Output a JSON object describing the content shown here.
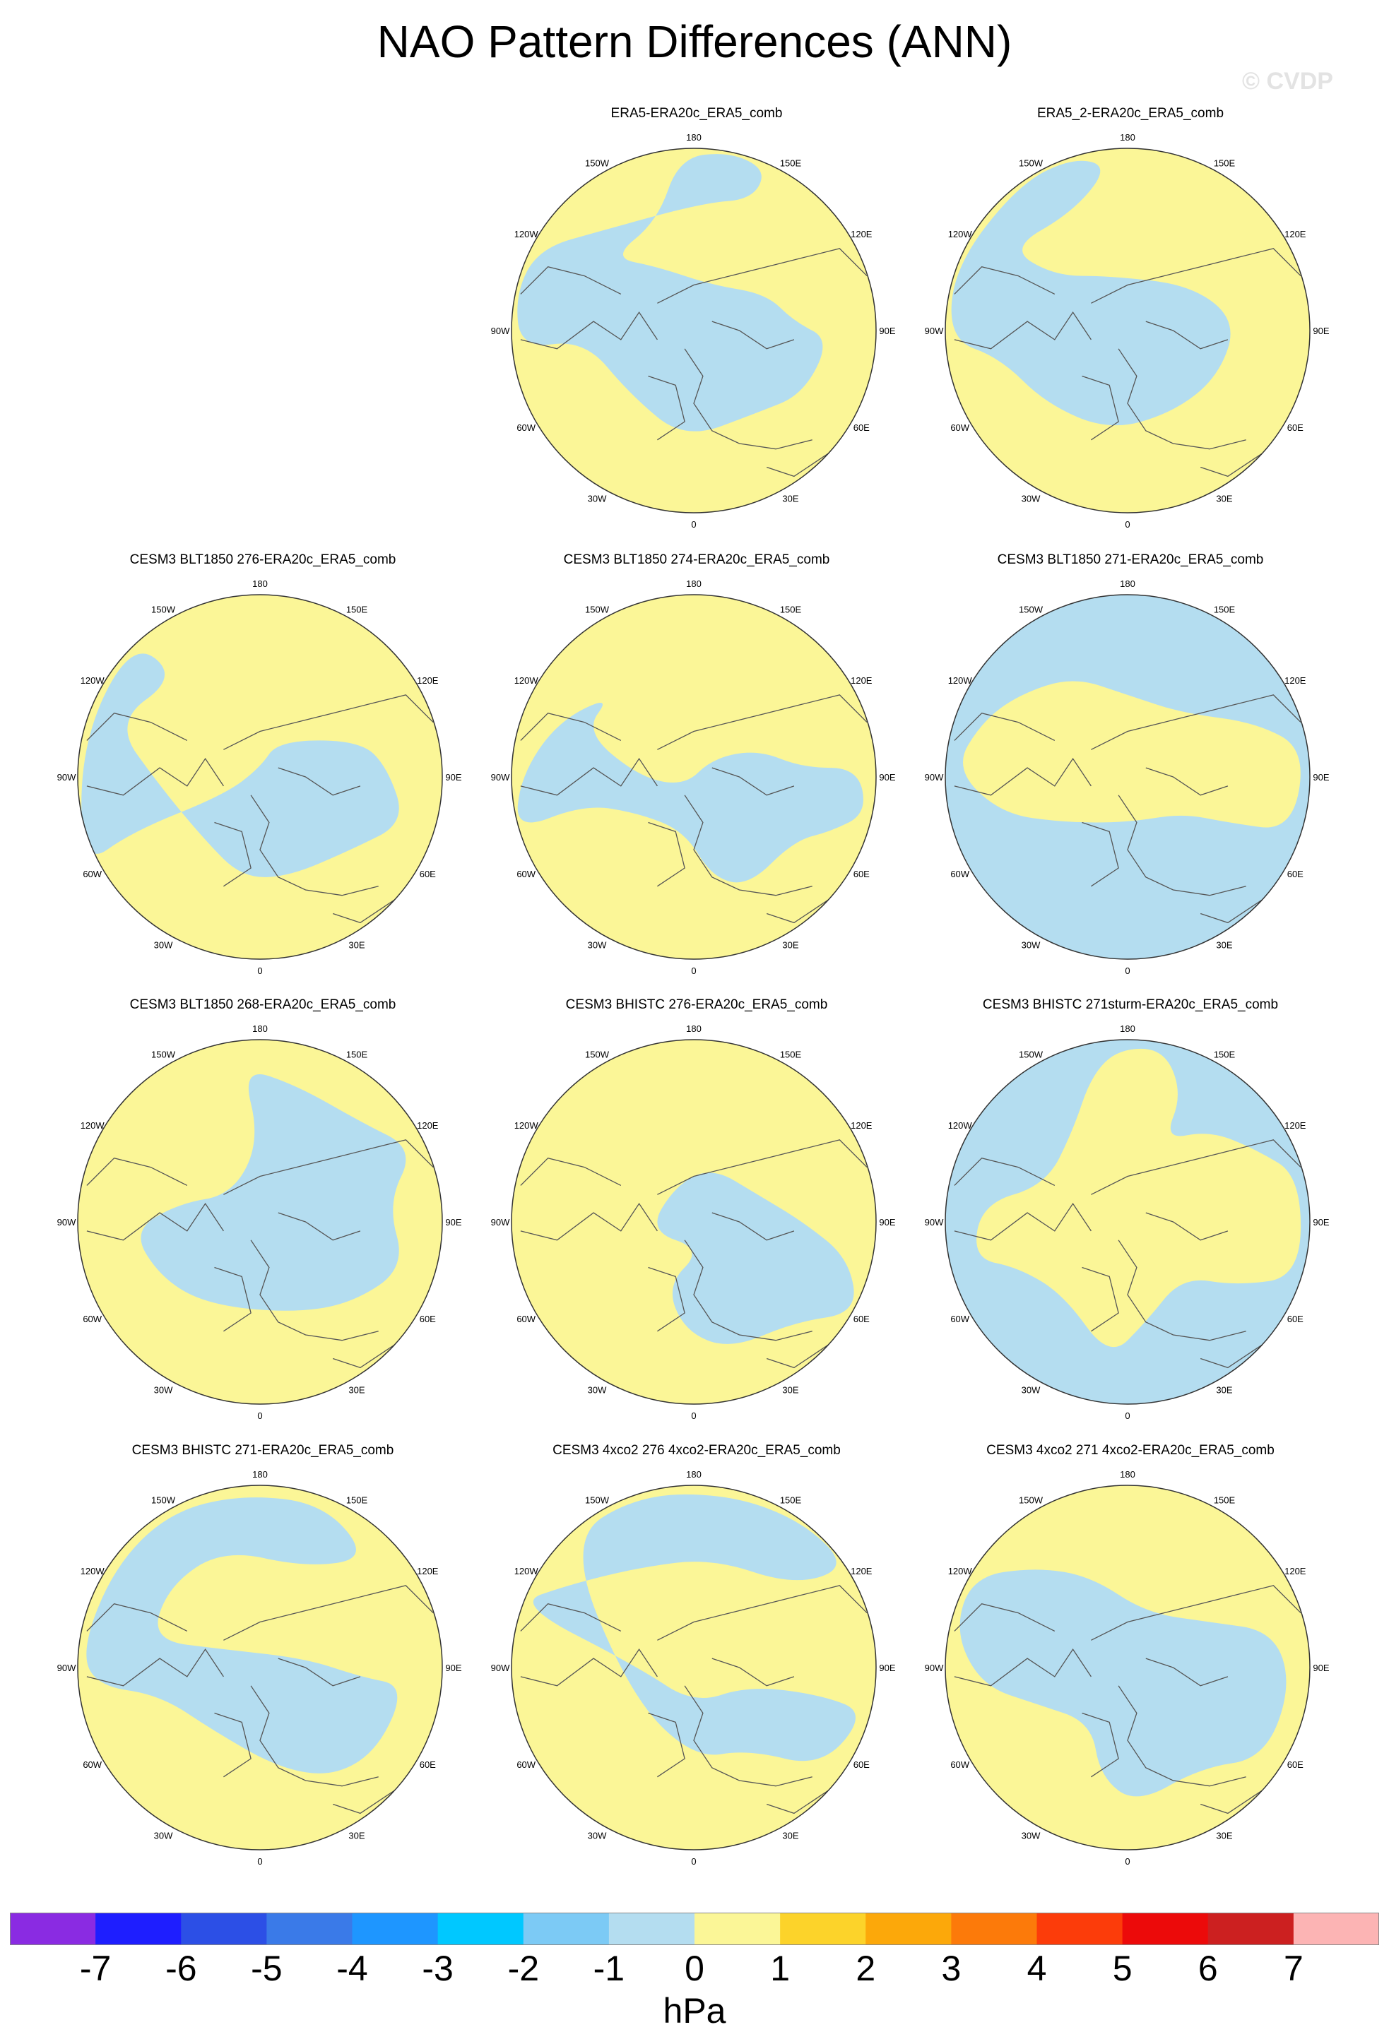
{
  "title": "NAO Pattern Differences (ANN)",
  "watermark": "© CVDP",
  "colors": {
    "negative": "#b4ddf0",
    "positive": "#fbf697",
    "coast": "#555555",
    "rim": "#333333"
  },
  "lon_labels": [
    "180",
    "150E",
    "120E",
    "90E",
    "60E",
    "30E",
    "0",
    "30W",
    "60W",
    "90W",
    "120W",
    "150W"
  ],
  "panels": [
    {
      "title": "ERA5-ERA20c_ERA5_comb",
      "base": "positive",
      "blob_color": "negative"
    },
    {
      "title": "ERA5_2-ERA20c_ERA5_comb",
      "base": "positive",
      "blob_color": "negative"
    },
    {
      "title": "CESM3 BLT1850 276-ERA20c_ERA5_comb",
      "base": "positive",
      "blob_color": "negative"
    },
    {
      "title": "CESM3 BLT1850 274-ERA20c_ERA5_comb",
      "base": "positive",
      "blob_color": "negative"
    },
    {
      "title": "CESM3 BLT1850 271-ERA20c_ERA5_comb",
      "base": "negative",
      "blob_color": "positive"
    },
    {
      "title": "CESM3 BLT1850 268-ERA20c_ERA5_comb",
      "base": "positive",
      "blob_color": "negative"
    },
    {
      "title": "CESM3 BHISTC 276-ERA20c_ERA5_comb",
      "base": "positive",
      "blob_color": "negative"
    },
    {
      "title": "CESM3 BHISTC 271sturm-ERA20c_ERA5_comb",
      "base": "negative",
      "blob_color": "positive"
    },
    {
      "title": "CESM3 BHISTC 271-ERA20c_ERA5_comb",
      "base": "positive",
      "blob_color": "negative"
    },
    {
      "title": "CESM3 4xco2 276 4xco2-ERA20c_ERA5_comb",
      "base": "positive",
      "blob_color": "negative"
    },
    {
      "title": "CESM3 4xco2 271 4xco2-ERA20c_ERA5_comb",
      "base": "positive",
      "blob_color": "negative"
    }
  ],
  "colorbar": {
    "unit": "hPa",
    "labels": [
      "-7",
      "-6",
      "-5",
      "-4",
      "-3",
      "-2",
      "-1",
      "0",
      "1",
      "2",
      "3",
      "4",
      "5",
      "6",
      "7"
    ],
    "colors": [
      "#8a2be2",
      "#1e1eff",
      "#2c4fe6",
      "#3a7ae8",
      "#1e96ff",
      "#00c8ff",
      "#7ccaf5",
      "#b4ddf0",
      "#fbf697",
      "#fcd32a",
      "#fca80a",
      "#fc7a0a",
      "#fc3c0a",
      "#ec0a0a",
      "#cc2020",
      "#fcb4b4"
    ]
  }
}
